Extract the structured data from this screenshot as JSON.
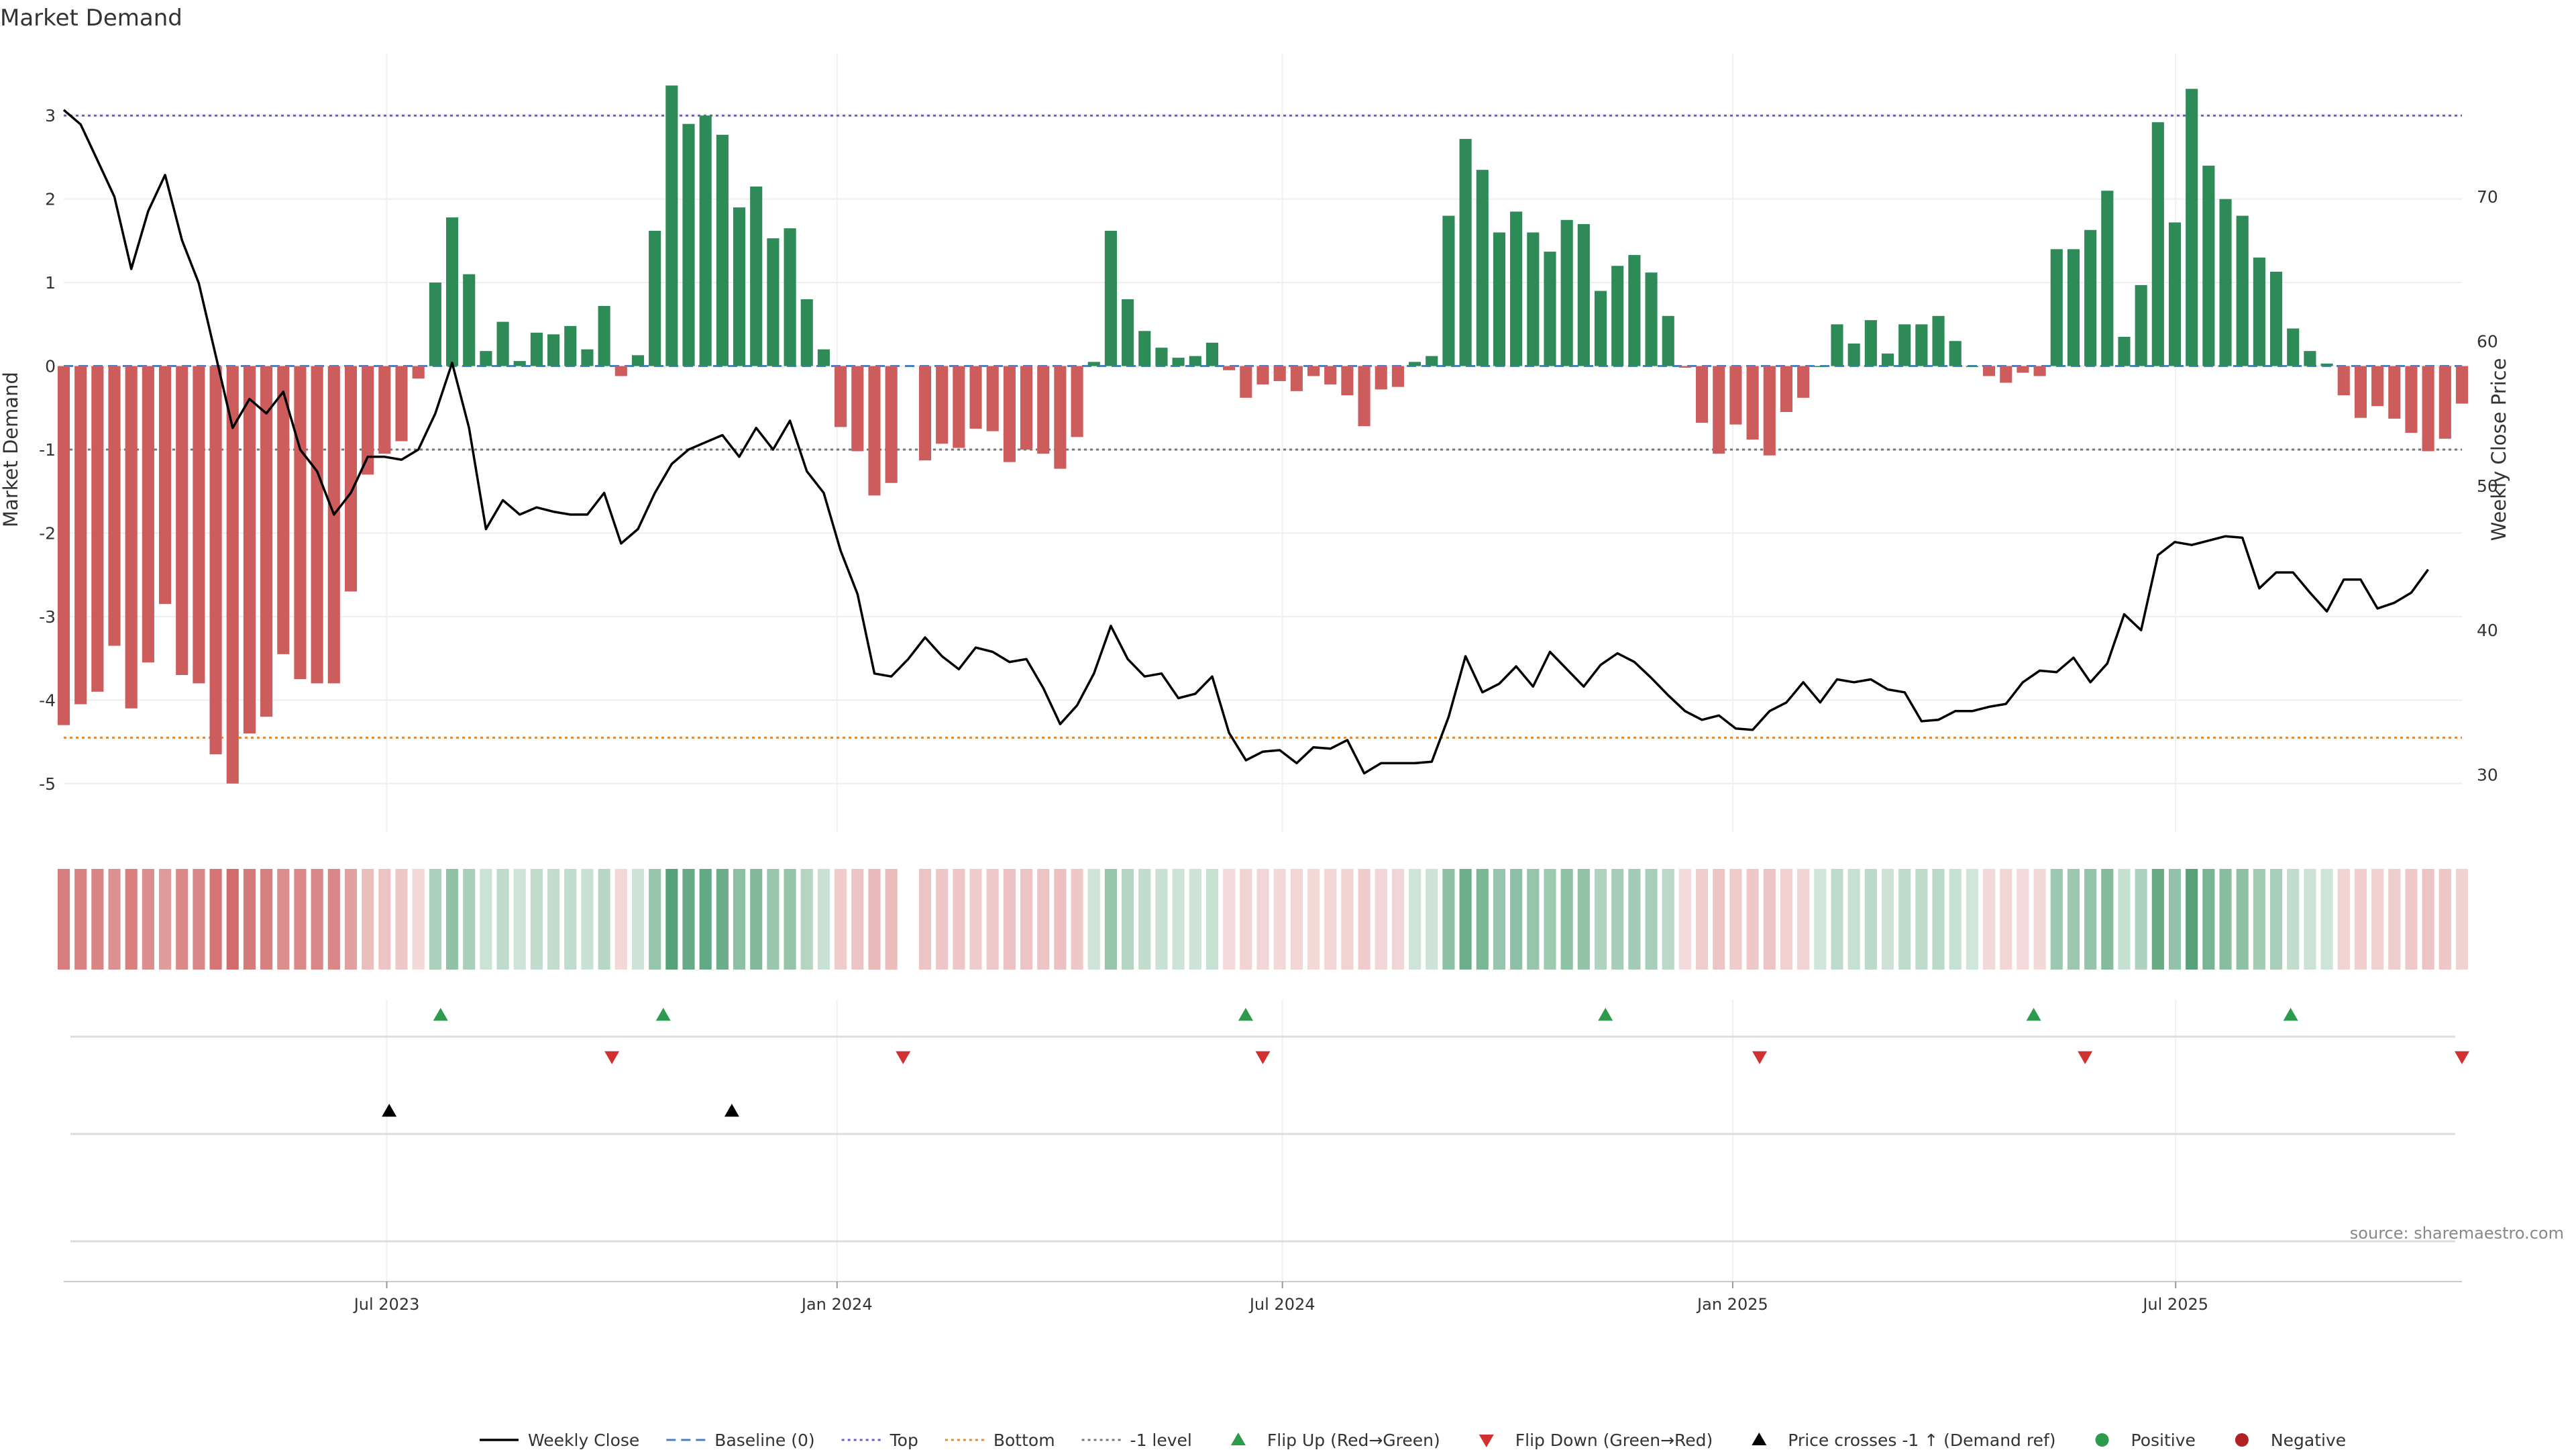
{
  "page": {
    "title": "Market Demand",
    "source": "source: sharemaestro.com"
  },
  "chart_data": {
    "type": "bar",
    "title": "Market Demand",
    "ylabel": "Market Demand",
    "y2label": "Weekly Close Price",
    "ylim": [
      -5.5,
      3.5
    ],
    "y2lim": [
      26.5,
      78.5
    ],
    "yticks": [
      -5,
      -4,
      -3,
      -2,
      -1,
      0,
      1,
      2,
      3
    ],
    "y2ticks": [
      30,
      40,
      50,
      60,
      70
    ],
    "x_start": "2023-02-19",
    "x_end": "2025-10-26",
    "x_period_days": 7,
    "xticks": [
      {
        "date": "2023-07-01",
        "label": "Jul 2023"
      },
      {
        "date": "2024-01-01",
        "label": "Jan 2024"
      },
      {
        "date": "2024-07-01",
        "label": "Jul 2024"
      },
      {
        "date": "2025-01-01",
        "label": "Jan 2025"
      },
      {
        "date": "2025-07-01",
        "label": "Jul 2025"
      }
    ],
    "reference_lines": [
      {
        "name": "Top",
        "value": 3.0,
        "color": "#6a5acd",
        "dash": "dotted"
      },
      {
        "name": "Bottom",
        "value": -4.45,
        "color": "#e08a2e",
        "dash": "dotted"
      },
      {
        "name": "-1 level",
        "value": -1.0,
        "color": "#777777",
        "dash": "dotted"
      },
      {
        "name": "Baseline (0)",
        "value": 0,
        "color": "#4c7fbf",
        "dash": "dashed"
      }
    ],
    "series": [
      {
        "name": "Market Demand",
        "kind": "bar",
        "values": [
          -4.3,
          -4.05,
          -3.9,
          -3.35,
          -4.1,
          -3.55,
          -2.85,
          -3.7,
          -3.8,
          -4.65,
          -5.0,
          -4.4,
          -4.2,
          -3.45,
          -3.75,
          -3.8,
          -3.8,
          -2.7,
          -1.3,
          -1.05,
          -0.9,
          -0.15,
          1.0,
          1.78,
          1.1,
          0.18,
          0.53,
          0.06,
          0.4,
          0.38,
          0.48,
          0.2,
          0.72,
          -0.12,
          0.13,
          1.62,
          3.36,
          2.9,
          3.0,
          2.77,
          1.9,
          2.15,
          1.53,
          1.65,
          0.8,
          0.2,
          -0.73,
          -1.02,
          -1.55,
          -1.4,
          null,
          -1.13,
          -0.93,
          -0.98,
          -0.75,
          -0.78,
          -1.15,
          -1.0,
          -1.05,
          -1.23,
          -0.85,
          0.05,
          1.62,
          0.8,
          0.42,
          0.22,
          0.1,
          0.12,
          0.28,
          -0.05,
          -0.38,
          -0.22,
          -0.18,
          -0.3,
          -0.12,
          -0.22,
          -0.35,
          -0.72,
          -0.28,
          -0.25,
          0.05,
          0.12,
          1.8,
          2.72,
          2.35,
          1.6,
          1.85,
          1.6,
          1.37,
          1.75,
          1.7,
          0.9,
          1.2,
          1.33,
          1.12,
          0.6,
          -0.02,
          -0.68,
          -1.05,
          -0.7,
          -0.88,
          -1.07,
          -0.55,
          -0.38,
          0.0,
          0.5,
          0.27,
          0.55,
          0.15,
          0.5,
          0.5,
          0.6,
          0.3,
          0.0,
          -0.12,
          -0.2,
          -0.08,
          -0.12,
          1.4,
          1.4,
          1.63,
          2.1,
          0.35,
          0.97,
          2.92,
          1.72,
          3.32,
          2.4,
          2.0,
          1.8,
          1.3,
          1.13,
          0.45,
          0.18,
          0.03,
          -0.35,
          -0.62,
          -0.48,
          -0.63,
          -0.8,
          -1.02,
          -0.87,
          -0.45
        ]
      },
      {
        "name": "Weekly Close",
        "kind": "line",
        "values": [
          76.0,
          75.0,
          72.5,
          70.0,
          65.0,
          69.0,
          71.5,
          67.0,
          64.0,
          59.0,
          54.0,
          56.0,
          55.0,
          56.5,
          52.5,
          51.0,
          48.0,
          49.5,
          52.0,
          52.0,
          51.8,
          52.5,
          55.0,
          58.5,
          54.0,
          47.0,
          49.0,
          48.0,
          48.5,
          48.2,
          48.0,
          48.0,
          49.5,
          46.0,
          47.0,
          49.5,
          51.5,
          52.5,
          53.0,
          53.5,
          52.0,
          54.0,
          52.5,
          54.5,
          51.0,
          49.5,
          45.5,
          42.5,
          37.0,
          36.8,
          38.0,
          39.5,
          38.2,
          37.3,
          38.8,
          38.5,
          37.8,
          38.0,
          36.0,
          33.5,
          34.8,
          37.0,
          40.3,
          38.0,
          36.8,
          37.0,
          35.3,
          35.6,
          36.8,
          32.9,
          31.0,
          31.6,
          31.7,
          30.8,
          31.9,
          31.8,
          32.4,
          30.1,
          30.8,
          30.8,
          30.8,
          30.9,
          34.0,
          38.2,
          35.7,
          36.3,
          37.5,
          36.1,
          38.5,
          37.3,
          36.1,
          37.6,
          38.4,
          37.8,
          36.7,
          35.5,
          34.4,
          33.8,
          34.1,
          33.2,
          33.1,
          34.4,
          35.0,
          36.4,
          35.0,
          36.6,
          36.4,
          36.6,
          35.9,
          35.7,
          33.7,
          33.8,
          34.4,
          34.4,
          34.7,
          34.9,
          36.4,
          37.2,
          37.1,
          38.1,
          36.4,
          37.7,
          41.1,
          40.0,
          45.2,
          46.1,
          45.9,
          46.2,
          46.5,
          46.4,
          42.9,
          44.0,
          44.0,
          42.6,
          41.3,
          43.5,
          43.5,
          41.5,
          41.9,
          42.6,
          44.2
        ]
      }
    ],
    "events": {
      "flip_up": [
        "2023-07-23",
        "2023-10-22",
        "2024-06-16",
        "2024-11-10",
        "2025-05-04",
        "2025-08-17"
      ],
      "flip_down": [
        "2023-10-01",
        "2024-01-28",
        "2024-06-23",
        "2025-01-12",
        "2025-05-25",
        "2025-10-26"
      ],
      "price_crosses": [
        "2023-07-02",
        "2023-11-19"
      ]
    },
    "legend": {
      "placement": "bottom",
      "entries": [
        {
          "label": "Weekly Close",
          "kind": "line",
          "color": "#000000"
        },
        {
          "label": "Baseline (0)",
          "kind": "dash",
          "color": "#4c7fbf"
        },
        {
          "label": "Top",
          "kind": "dot",
          "color": "#6a5acd"
        },
        {
          "label": "Bottom",
          "kind": "dot",
          "color": "#e08a2e"
        },
        {
          "label": "-1 level",
          "kind": "dot",
          "color": "#777777"
        },
        {
          "label": "Flip Up (Red→Green)",
          "kind": "tri-up",
          "color": "#2e9a4e"
        },
        {
          "label": "Flip Down (Green→Red)",
          "kind": "tri-down",
          "color": "#d03030"
        },
        {
          "label": "Price crosses -1 ↑ (Demand ref)",
          "kind": "tri-up",
          "color": "#000000"
        },
        {
          "label": "Positive",
          "kind": "circle",
          "color": "#2e9a4e"
        },
        {
          "label": "Negative",
          "kind": "circle",
          "color": "#b22222"
        }
      ]
    },
    "colors": {
      "positive": "#2e8b57",
      "negative": "#cd5c5c",
      "price": "#000000"
    },
    "grid": true
  }
}
